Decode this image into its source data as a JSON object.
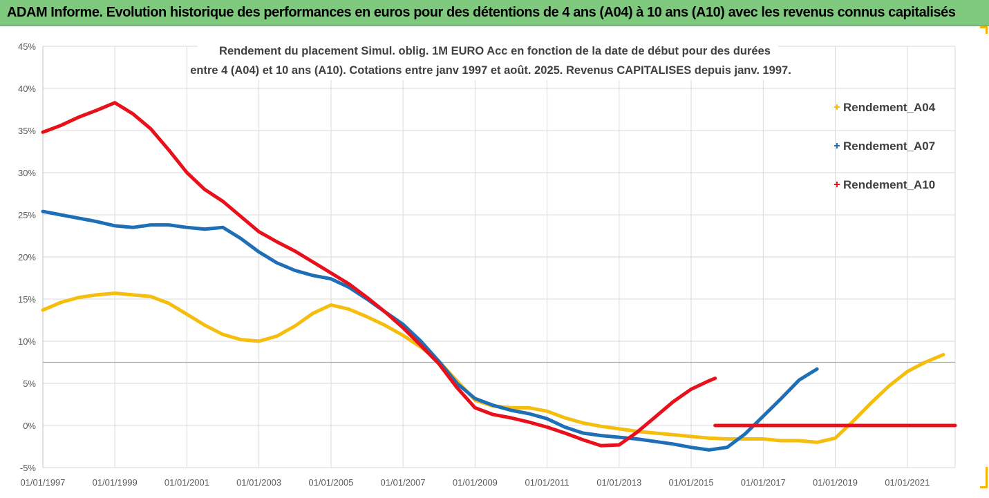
{
  "banner": {
    "text": "ADAM Informe. Evolution historique des performances en euros pour des détentions de 4 ans (A04) à 10 ans (A10) avec les revenus connus capitalisés"
  },
  "chart_data": {
    "type": "line",
    "title_line1": "Rendement du placement Simul. oblig. 1M EURO Acc en fonction de la date de début pour des durées",
    "title_line2": "entre 4 (A04) et 10 ans (A10). Cotations entre janv 1997 et août. 2025. Revenus CAPITALISES depuis janv. 1997.",
    "xlabel": "",
    "ylabel": "",
    "x_ticks": [
      "01/01/1997",
      "01/01/1999",
      "01/01/2001",
      "01/01/2003",
      "01/01/2005",
      "01/01/2007",
      "01/01/2009",
      "01/01/2011",
      "01/01/2013",
      "01/01/2015",
      "01/01/2017",
      "01/01/2019",
      "01/01/2021"
    ],
    "y_ticks": [
      "45%",
      "40%",
      "35%",
      "30%",
      "25%",
      "20%",
      "15%",
      "10%",
      "5%",
      "0%",
      "-5%"
    ],
    "xlim": [
      "1997-01-01",
      "2022-05-01"
    ],
    "ylim": [
      -5,
      45
    ],
    "grid": true,
    "legend_position": "right",
    "colors": {
      "A04": "#f5bd0d",
      "A07": "#1f6fb7",
      "A10": "#e8101a",
      "grid": "#d9d9d9"
    },
    "series": [
      {
        "name": "Rendement_A04",
        "color": "#f5bd0d",
        "points": [
          [
            "1997-01-01",
            13.7
          ],
          [
            "1997-07-01",
            14.6
          ],
          [
            "1998-01-01",
            15.2
          ],
          [
            "1998-07-01",
            15.5
          ],
          [
            "1999-01-01",
            15.7
          ],
          [
            "1999-07-01",
            15.5
          ],
          [
            "2000-01-01",
            15.3
          ],
          [
            "2000-07-01",
            14.5
          ],
          [
            "2001-01-01",
            13.2
          ],
          [
            "2001-07-01",
            11.9
          ],
          [
            "2002-01-01",
            10.8
          ],
          [
            "2002-07-01",
            10.2
          ],
          [
            "2003-01-01",
            10.0
          ],
          [
            "2003-07-01",
            10.6
          ],
          [
            "2004-01-01",
            11.8
          ],
          [
            "2004-07-01",
            13.3
          ],
          [
            "2005-01-01",
            14.3
          ],
          [
            "2005-07-01",
            13.8
          ],
          [
            "2006-01-01",
            12.9
          ],
          [
            "2006-07-01",
            11.9
          ],
          [
            "2007-01-01",
            10.7
          ],
          [
            "2007-07-01",
            9.3
          ],
          [
            "2008-01-01",
            7.6
          ],
          [
            "2008-07-01",
            5.3
          ],
          [
            "2009-01-01",
            3.0
          ],
          [
            "2009-07-01",
            2.3
          ],
          [
            "2010-01-01",
            2.1
          ],
          [
            "2010-07-01",
            2.1
          ],
          [
            "2011-01-01",
            1.7
          ],
          [
            "2011-07-01",
            0.9
          ],
          [
            "2012-01-01",
            0.3
          ],
          [
            "2012-07-01",
            -0.1
          ],
          [
            "2013-01-01",
            -0.4
          ],
          [
            "2013-07-01",
            -0.7
          ],
          [
            "2014-01-01",
            -0.9
          ],
          [
            "2014-07-01",
            -1.1
          ],
          [
            "2015-01-01",
            -1.3
          ],
          [
            "2015-07-01",
            -1.5
          ],
          [
            "2016-01-01",
            -1.6
          ],
          [
            "2016-07-01",
            -1.6
          ],
          [
            "2017-01-01",
            -1.6
          ],
          [
            "2017-07-01",
            -1.8
          ],
          [
            "2018-01-01",
            -1.8
          ],
          [
            "2018-07-01",
            -2.0
          ],
          [
            "2019-01-01",
            -1.5
          ],
          [
            "2019-07-01",
            0.5
          ],
          [
            "2020-01-01",
            2.7
          ],
          [
            "2020-07-01",
            4.7
          ],
          [
            "2021-01-01",
            6.4
          ],
          [
            "2021-07-01",
            7.5
          ],
          [
            "2022-01-01",
            8.4
          ]
        ]
      },
      {
        "name": "Rendement_A07",
        "color": "#1f6fb7",
        "points": [
          [
            "1997-01-01",
            25.4
          ],
          [
            "1997-07-01",
            25.0
          ],
          [
            "1998-01-01",
            24.6
          ],
          [
            "1998-07-01",
            24.2
          ],
          [
            "1999-01-01",
            23.7
          ],
          [
            "1999-07-01",
            23.5
          ],
          [
            "2000-01-01",
            23.8
          ],
          [
            "2000-07-01",
            23.8
          ],
          [
            "2001-01-01",
            23.5
          ],
          [
            "2001-07-01",
            23.3
          ],
          [
            "2002-01-01",
            23.5
          ],
          [
            "2002-07-01",
            22.2
          ],
          [
            "2003-01-01",
            20.6
          ],
          [
            "2003-07-01",
            19.3
          ],
          [
            "2004-01-01",
            18.4
          ],
          [
            "2004-07-01",
            17.8
          ],
          [
            "2005-01-01",
            17.4
          ],
          [
            "2005-07-01",
            16.4
          ],
          [
            "2006-01-01",
            15.0
          ],
          [
            "2006-07-01",
            13.5
          ],
          [
            "2007-01-01",
            12.0
          ],
          [
            "2007-07-01",
            10.0
          ],
          [
            "2008-01-01",
            7.6
          ],
          [
            "2008-07-01",
            5.0
          ],
          [
            "2009-01-01",
            3.2
          ],
          [
            "2009-07-01",
            2.4
          ],
          [
            "2010-01-01",
            1.8
          ],
          [
            "2010-07-01",
            1.4
          ],
          [
            "2011-01-01",
            0.8
          ],
          [
            "2011-07-01",
            -0.2
          ],
          [
            "2012-01-01",
            -0.9
          ],
          [
            "2012-07-01",
            -1.2
          ],
          [
            "2013-01-01",
            -1.4
          ],
          [
            "2013-07-01",
            -1.6
          ],
          [
            "2014-01-01",
            -1.9
          ],
          [
            "2014-07-01",
            -2.2
          ],
          [
            "2015-01-01",
            -2.6
          ],
          [
            "2015-07-01",
            -2.9
          ],
          [
            "2016-01-01",
            -2.6
          ],
          [
            "2016-07-01",
            -1.0
          ],
          [
            "2017-01-01",
            1.1
          ],
          [
            "2017-07-01",
            3.2
          ],
          [
            "2018-01-01",
            5.4
          ],
          [
            "2018-07-01",
            6.7
          ]
        ]
      },
      {
        "name": "Rendement_A10",
        "color": "#e8101a",
        "points": [
          [
            "1997-01-01",
            34.8
          ],
          [
            "1997-07-01",
            35.6
          ],
          [
            "1998-01-01",
            36.6
          ],
          [
            "1998-07-01",
            37.4
          ],
          [
            "1999-01-01",
            38.3
          ],
          [
            "1999-07-01",
            37.0
          ],
          [
            "2000-01-01",
            35.2
          ],
          [
            "2000-07-01",
            32.7
          ],
          [
            "2001-01-01",
            30.0
          ],
          [
            "2001-07-01",
            28.0
          ],
          [
            "2002-01-01",
            26.6
          ],
          [
            "2002-07-01",
            24.8
          ],
          [
            "2003-01-01",
            23.0
          ],
          [
            "2003-07-01",
            21.8
          ],
          [
            "2004-01-01",
            20.7
          ],
          [
            "2004-07-01",
            19.4
          ],
          [
            "2005-01-01",
            18.1
          ],
          [
            "2005-07-01",
            16.8
          ],
          [
            "2006-01-01",
            15.2
          ],
          [
            "2006-07-01",
            13.5
          ],
          [
            "2007-01-01",
            11.6
          ],
          [
            "2007-07-01",
            9.5
          ],
          [
            "2008-01-01",
            7.3
          ],
          [
            "2008-07-01",
            4.5
          ],
          [
            "2009-01-01",
            2.1
          ],
          [
            "2009-07-01",
            1.3
          ],
          [
            "2010-01-01",
            0.9
          ],
          [
            "2010-07-01",
            0.4
          ],
          [
            "2011-01-01",
            -0.2
          ],
          [
            "2011-07-01",
            -0.9
          ],
          [
            "2012-01-01",
            -1.7
          ],
          [
            "2012-07-01",
            -2.4
          ],
          [
            "2013-01-01",
            -2.3
          ],
          [
            "2013-07-01",
            -0.8
          ],
          [
            "2014-01-01",
            1.0
          ],
          [
            "2014-07-01",
            2.8
          ],
          [
            "2015-01-01",
            4.3
          ],
          [
            "2015-07-01",
            5.3
          ],
          [
            "2015-09-01",
            5.6
          ]
        ]
      },
      {
        "name": "",
        "color": "#e8101a",
        "points": [
          [
            "2015-09-01",
            0.0
          ],
          [
            "2022-05-01",
            0.0
          ]
        ]
      }
    ]
  }
}
